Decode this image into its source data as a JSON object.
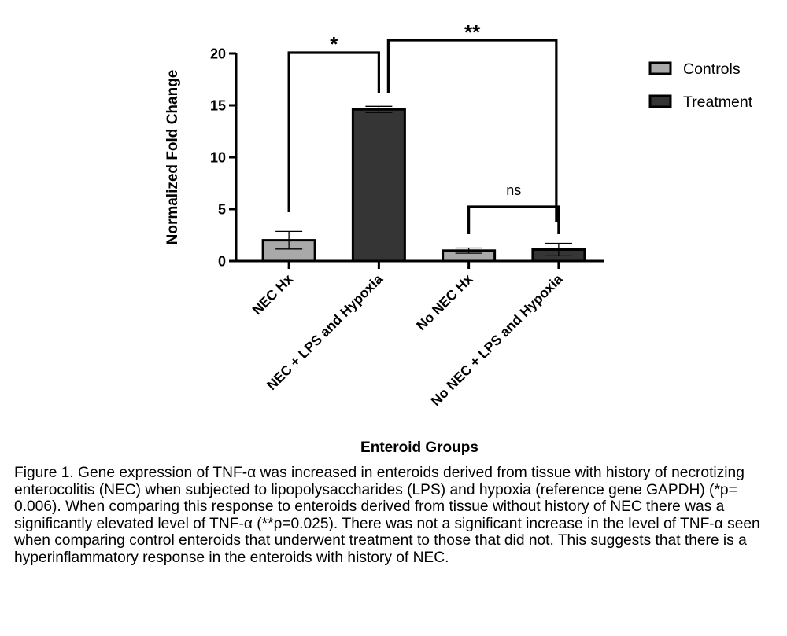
{
  "chart_data": {
    "type": "bar",
    "ylabel": "Normalized Fold Change",
    "xlabel": "Enteroid Groups",
    "ylim": [
      0,
      20
    ],
    "yticks": [
      0,
      5,
      10,
      15,
      20
    ],
    "grid": false,
    "legend_position": "right",
    "categories": [
      "NEC Hx",
      "NEC + LPS and Hypoxia",
      "No NEC Hx",
      "No NEC + LPS and Hypoxia"
    ],
    "values": [
      2.0,
      14.6,
      1.0,
      1.1
    ],
    "errors": [
      0.85,
      0.3,
      0.25,
      0.6
    ],
    "groups": [
      "Controls",
      "Treatment",
      "Controls",
      "Treatment"
    ],
    "legend": [
      {
        "name": "Controls",
        "color": "#a9a9a9"
      },
      {
        "name": "Treatment",
        "color": "#353535"
      }
    ],
    "significance": [
      {
        "label": "*",
        "from": 0,
        "to": 1
      },
      {
        "label": "**",
        "from": 1,
        "to": 3
      },
      {
        "label": "ns",
        "from": 2,
        "to": 3
      }
    ]
  },
  "caption": "Figure 1. Gene expression of TNF-α was increased in enteroids derived from tissue with history of necrotizing enterocolitis (NEC) when subjected to lipopolysaccharides (LPS) and hypoxia (reference gene GAPDH) (*p= 0.006). When comparing this response to enteroids derived from tissue without history of NEC there was a significantly elevated level of TNF-α (**p=0.025). There was not a significant increase in the level of TNF-α seen when comparing control enteroids that underwent treatment to those that did not. This suggests that there is a hyperinflammatory response in the enteroids with history of NEC."
}
